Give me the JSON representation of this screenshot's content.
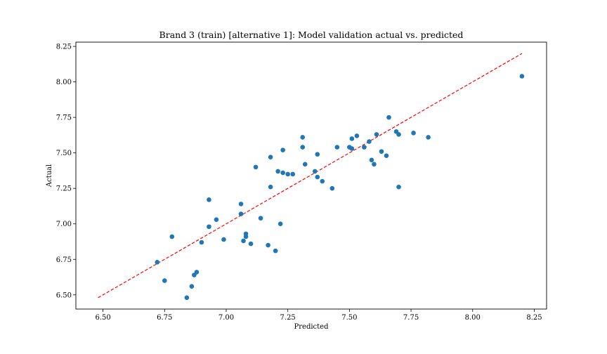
{
  "chart_data": {
    "type": "scatter",
    "title": "Brand 3 (train) [alternative 1]: Model validation actual vs. predicted",
    "xlabel": "Predicted",
    "ylabel": "Actual",
    "xlim": [
      6.39,
      8.3
    ],
    "ylim": [
      6.4,
      8.28
    ],
    "xticks": [
      6.5,
      6.75,
      7.0,
      7.25,
      7.5,
      7.75,
      8.0,
      8.25
    ],
    "xtick_labels": [
      "6.50",
      "6.75",
      "7.00",
      "7.25",
      "7.50",
      "7.75",
      "8.00",
      "8.25"
    ],
    "yticks": [
      6.5,
      6.75,
      7.0,
      7.25,
      7.5,
      7.75,
      8.0,
      8.25
    ],
    "ytick_labels": [
      "6.50",
      "6.75",
      "7.00",
      "7.25",
      "7.50",
      "7.75",
      "8.00",
      "8.25"
    ],
    "grid": false,
    "colors": {
      "points": "#1f77b4",
      "reference_line": "#ff0000"
    },
    "reference_line": {
      "style": "dashed",
      "x": [
        6.48,
        8.2
      ],
      "y": [
        6.48,
        8.2
      ]
    },
    "points": [
      {
        "x": 6.72,
        "y": 6.73
      },
      {
        "x": 6.75,
        "y": 6.6
      },
      {
        "x": 6.78,
        "y": 6.91
      },
      {
        "x": 6.84,
        "y": 6.48
      },
      {
        "x": 6.86,
        "y": 6.56
      },
      {
        "x": 6.87,
        "y": 6.64
      },
      {
        "x": 6.88,
        "y": 6.66
      },
      {
        "x": 6.9,
        "y": 6.87
      },
      {
        "x": 6.93,
        "y": 6.98
      },
      {
        "x": 6.93,
        "y": 7.17
      },
      {
        "x": 6.96,
        "y": 7.03
      },
      {
        "x": 6.99,
        "y": 6.89
      },
      {
        "x": 7.06,
        "y": 7.14
      },
      {
        "x": 7.06,
        "y": 7.07
      },
      {
        "x": 7.07,
        "y": 6.88
      },
      {
        "x": 7.08,
        "y": 6.91
      },
      {
        "x": 7.08,
        "y": 6.93
      },
      {
        "x": 7.1,
        "y": 6.86
      },
      {
        "x": 7.12,
        "y": 7.4
      },
      {
        "x": 7.14,
        "y": 7.04
      },
      {
        "x": 7.17,
        "y": 6.85
      },
      {
        "x": 7.18,
        "y": 7.47
      },
      {
        "x": 7.18,
        "y": 7.26
      },
      {
        "x": 7.2,
        "y": 6.81
      },
      {
        "x": 7.21,
        "y": 7.37
      },
      {
        "x": 7.22,
        "y": 7.0
      },
      {
        "x": 7.23,
        "y": 7.52
      },
      {
        "x": 7.23,
        "y": 7.36
      },
      {
        "x": 7.25,
        "y": 7.35
      },
      {
        "x": 7.27,
        "y": 7.35
      },
      {
        "x": 7.31,
        "y": 7.61
      },
      {
        "x": 7.31,
        "y": 7.54
      },
      {
        "x": 7.32,
        "y": 7.42
      },
      {
        "x": 7.36,
        "y": 7.37
      },
      {
        "x": 7.37,
        "y": 7.49
      },
      {
        "x": 7.37,
        "y": 7.33
      },
      {
        "x": 7.39,
        "y": 7.3
      },
      {
        "x": 7.43,
        "y": 7.25
      },
      {
        "x": 7.45,
        "y": 7.54
      },
      {
        "x": 7.5,
        "y": 7.54
      },
      {
        "x": 7.51,
        "y": 7.53
      },
      {
        "x": 7.51,
        "y": 7.6
      },
      {
        "x": 7.53,
        "y": 7.62
      },
      {
        "x": 7.56,
        "y": 7.54
      },
      {
        "x": 7.58,
        "y": 7.58
      },
      {
        "x": 7.59,
        "y": 7.45
      },
      {
        "x": 7.6,
        "y": 7.42
      },
      {
        "x": 7.61,
        "y": 7.63
      },
      {
        "x": 7.63,
        "y": 7.51
      },
      {
        "x": 7.65,
        "y": 7.48
      },
      {
        "x": 7.66,
        "y": 7.75
      },
      {
        "x": 7.69,
        "y": 7.65
      },
      {
        "x": 7.7,
        "y": 7.63
      },
      {
        "x": 7.7,
        "y": 7.26
      },
      {
        "x": 7.76,
        "y": 7.64
      },
      {
        "x": 7.82,
        "y": 7.61
      },
      {
        "x": 8.2,
        "y": 8.04
      }
    ]
  }
}
